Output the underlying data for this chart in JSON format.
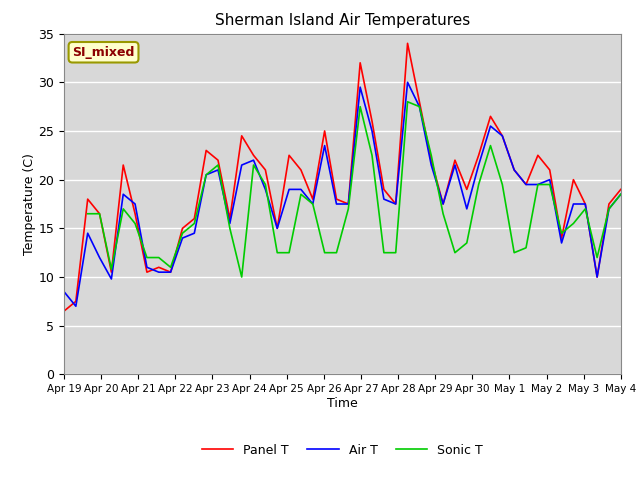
{
  "title": "Sherman Island Air Temperatures",
  "xlabel": "Time",
  "ylabel": "Temperature (C)",
  "ylim": [
    0,
    35
  ],
  "background_color": "#ffffff",
  "plot_bg_color": "#d8d8d8",
  "grid_color": "#ffffff",
  "annotation_text": "SI_mixed",
  "annotation_color": "#8b0000",
  "annotation_bg": "#ffffcc",
  "legend_labels": [
    "Panel T",
    "Air T",
    "Sonic T"
  ],
  "colors": [
    "#ff0000",
    "#0000ff",
    "#00cc00"
  ],
  "x_tick_labels": [
    "Apr 19",
    "Apr 20",
    "Apr 21",
    "Apr 22",
    "Apr 23",
    "Apr 24",
    "Apr 25",
    "Apr 26",
    "Apr 27",
    "Apr 28",
    "Apr 29",
    "Apr 30",
    "May 1",
    "May 2",
    "May 3",
    "May 4"
  ],
  "panel_t": [
    6.5,
    7.5,
    18.0,
    16.5,
    10.5,
    21.5,
    16.5,
    10.5,
    11.0,
    10.5,
    15.0,
    16.0,
    23.0,
    22.0,
    16.0,
    24.5,
    22.5,
    21.0,
    15.0,
    22.5,
    21.0,
    18.0,
    25.0,
    18.0,
    17.5,
    32.0,
    26.0,
    19.0,
    17.5,
    34.0,
    28.0,
    22.0,
    17.5,
    22.0,
    19.0,
    22.5,
    26.5,
    24.5,
    21.0,
    19.5,
    22.5,
    21.0,
    14.0,
    20.0,
    17.5,
    10.0,
    17.5,
    19.0
  ],
  "air_t": [
    8.5,
    7.0,
    14.5,
    12.0,
    9.8,
    18.5,
    17.5,
    11.0,
    10.5,
    10.5,
    14.0,
    14.5,
    20.5,
    21.0,
    15.5,
    21.5,
    22.0,
    19.0,
    15.0,
    19.0,
    19.0,
    17.5,
    23.5,
    17.5,
    17.5,
    29.5,
    25.0,
    18.0,
    17.5,
    30.0,
    27.5,
    21.5,
    17.5,
    21.5,
    17.0,
    21.5,
    25.5,
    24.5,
    21.0,
    19.5,
    19.5,
    20.0,
    13.5,
    17.5,
    17.5,
    10.0,
    17.0,
    18.5
  ],
  "sonic_t": [
    null,
    null,
    16.5,
    16.5,
    10.8,
    17.0,
    15.5,
    12.0,
    12.0,
    11.0,
    14.5,
    15.5,
    20.5,
    21.5,
    15.0,
    10.0,
    21.5,
    19.5,
    12.5,
    12.5,
    18.5,
    17.5,
    12.5,
    12.5,
    17.0,
    27.5,
    22.5,
    12.5,
    12.5,
    28.0,
    27.5,
    22.5,
    16.5,
    12.5,
    13.5,
    19.5,
    23.5,
    19.5,
    12.5,
    13.0,
    19.5,
    19.5,
    14.5,
    15.5,
    17.0,
    12.0,
    17.0,
    18.5
  ]
}
